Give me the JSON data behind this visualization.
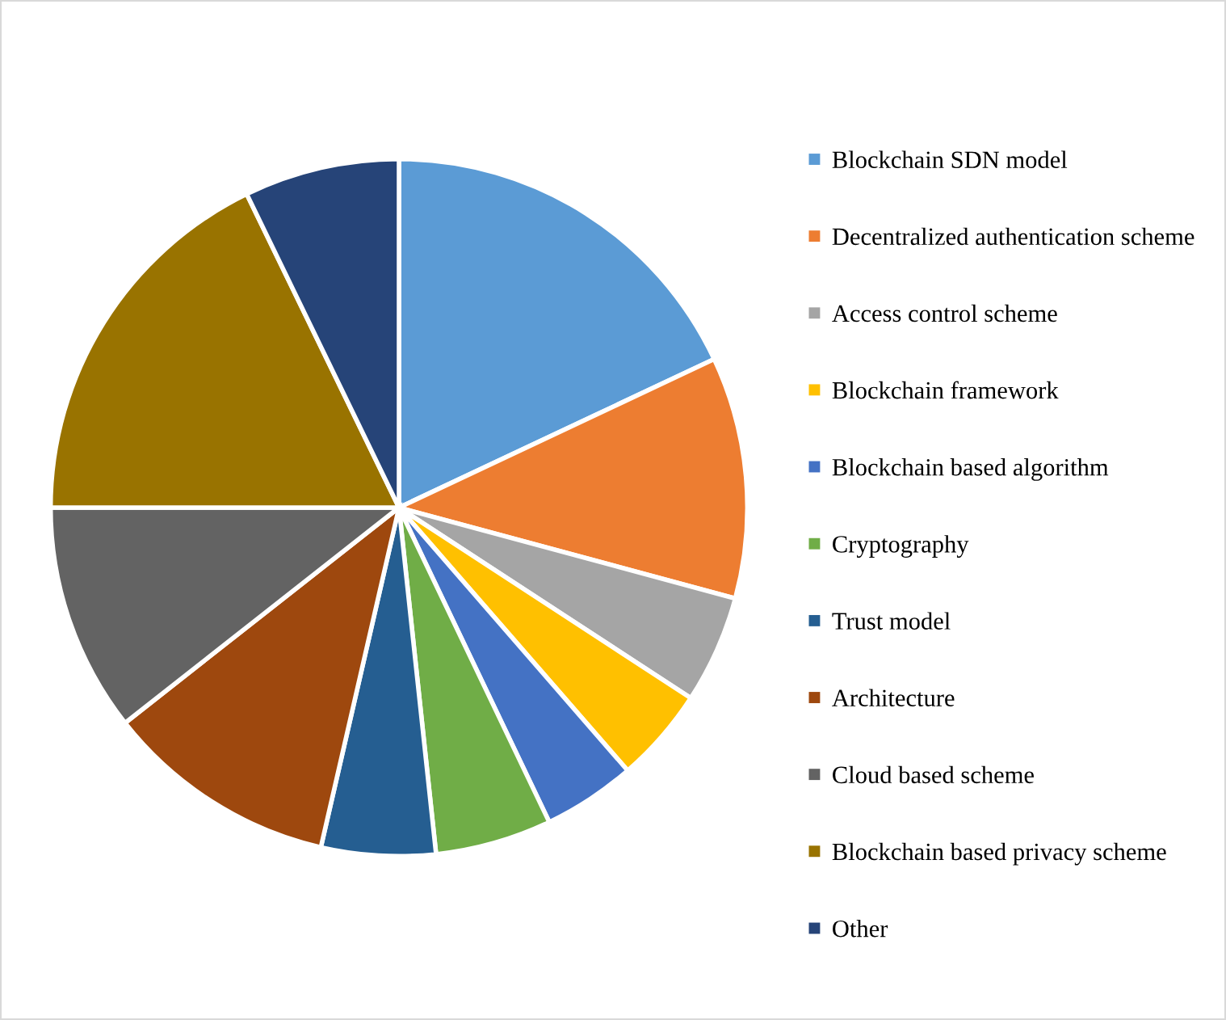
{
  "chart_data": {
    "type": "pie",
    "categories": [
      "Blockchain SDN model",
      "Decentralized authentication scheme",
      "Access control scheme",
      "Blockchain framework",
      "Blockchain based algorithm",
      "Cryptography",
      "Trust model",
      "Architecture",
      "Cloud based scheme",
      "Blockchain based privacy scheme",
      "Other"
    ],
    "values": [
      18,
      11.2,
      5,
      4.4,
      4.3,
      5.4,
      5.3,
      10.8,
      10.6,
      17.8,
      7.2
    ],
    "colors": [
      "#5b9bd5",
      "#ed7d31",
      "#a5a5a5",
      "#ffc000",
      "#4472c4",
      "#70ad47",
      "#255e91",
      "#9e480e",
      "#636363",
      "#997300",
      "#264478"
    ],
    "legend": "right"
  }
}
